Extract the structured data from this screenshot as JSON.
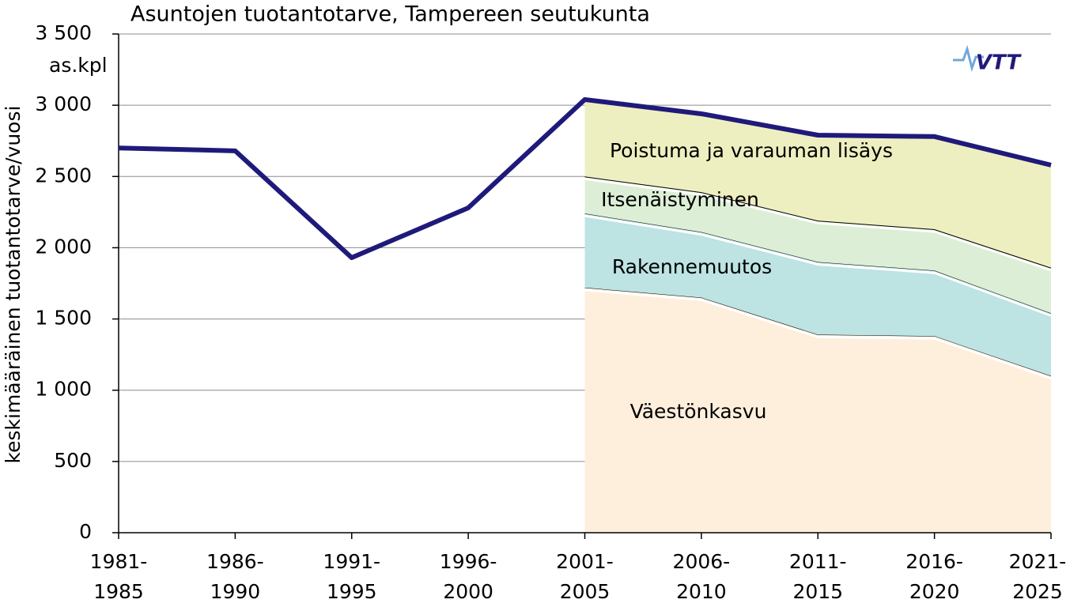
{
  "chart_data": {
    "type": "stacked-area-line",
    "title": "Asuntojen tuotantotarve, Tampereen seutukunta",
    "y_unit": "as.kpl",
    "y_label": "keskimääräinen tuotantotarve/vuosi",
    "logo": "VTT",
    "categories": [
      "1981-\n1985",
      "1986-\n1990",
      "1991-\n1995",
      "1996-\n2000",
      "2001-\n2005",
      "2006-\n2010",
      "2011-\n2015",
      "2016-\n2020",
      "2021-\n2025"
    ],
    "series": [
      {
        "name": "Väestönkasvu",
        "color": "#fdefdc",
        "values": [
          null,
          null,
          null,
          null,
          1720,
          1650,
          1390,
          1380,
          1100
        ]
      },
      {
        "name": "Rakennemuutos",
        "color": "#bde3e3",
        "values": [
          null,
          null,
          null,
          null,
          520,
          460,
          510,
          460,
          440
        ]
      },
      {
        "name": "Itsenäistyminen",
        "color": "#dcefd6",
        "values": [
          null,
          null,
          null,
          null,
          260,
          280,
          290,
          290,
          320
        ]
      },
      {
        "name": "Poistuma ja varauman lisäys",
        "color": "#eeefc0",
        "values": [
          null,
          null,
          null,
          null,
          540,
          550,
          600,
          650,
          720
        ]
      }
    ],
    "line": {
      "color": "#1f1a7a",
      "values": [
        2700,
        2680,
        1930,
        2280,
        3040,
        2940,
        2790,
        2780,
        2580
      ]
    },
    "ylim": [
      0,
      3500
    ],
    "yticks": [
      0,
      500,
      {
        "value": 1000,
        "label": "1 000"
      },
      {
        "value": 1500,
        "label": "1 500"
      },
      {
        "value": 2000,
        "label": "2 000"
      },
      {
        "value": 2500,
        "label": "2 500"
      },
      {
        "value": 3000,
        "label": "3 000"
      },
      {
        "value": 3500,
        "label": "3 500"
      }
    ],
    "grid": true
  }
}
